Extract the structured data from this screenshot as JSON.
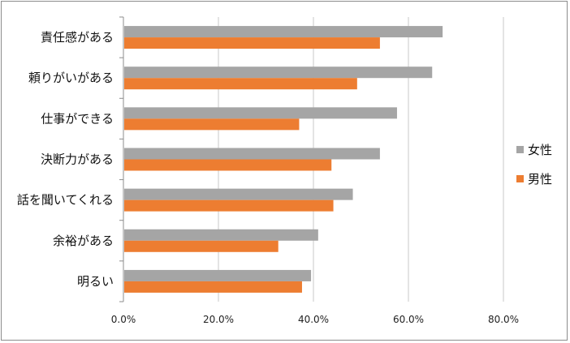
{
  "chart_data": {
    "type": "bar",
    "orientation": "horizontal",
    "categories": [
      "責任感がある",
      "頼りがいがある",
      "仕事ができる",
      "決断力がある",
      "話を聞いてくれる",
      "余裕がある",
      "明るい"
    ],
    "series": [
      {
        "name": "女性",
        "color": "#a5a5a5",
        "values": [
          67.2,
          65.0,
          57.6,
          54.0,
          48.3,
          41.0,
          39.5
        ]
      },
      {
        "name": "男性",
        "color": "#ed7d31",
        "values": [
          54.0,
          49.2,
          37.0,
          43.8,
          44.2,
          32.6,
          37.6
        ]
      }
    ],
    "xlim": [
      0,
      80
    ],
    "xticks": [
      "0.0%",
      "20.0%",
      "40.0%",
      "60.0%",
      "80.0%"
    ],
    "grid": "vertical",
    "legend": "right"
  }
}
